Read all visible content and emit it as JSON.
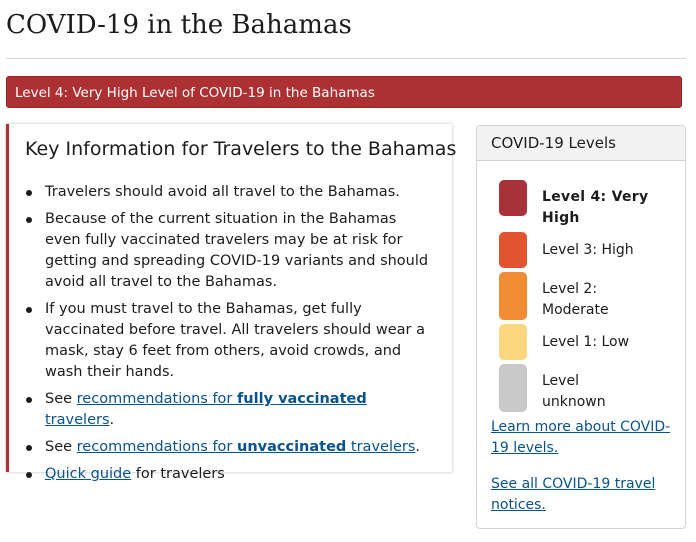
{
  "page": {
    "title": "COVID-19 in the Bahamas"
  },
  "alert": {
    "text": "Level 4: Very High Level of COVID-19 in the Bahamas",
    "color": "#ad3033"
  },
  "key_info": {
    "heading": "Key Information for Travelers to the Bahamas",
    "items": {
      "0": "Travelers should avoid all travel to the Bahamas.",
      "1": "Because of the current situation in  the Bahamas even fully vaccinated travelers may be at risk for getting and spreading COVID-19 variants and should avoid all travel to the Bahamas.",
      "2": "If you must travel to the Bahamas, get fully vaccinated before travel. All travelers should wear a mask, stay 6 feet from others, avoid crowds, and wash their hands."
    },
    "see_prefix": "See ",
    "vaccinated_link": {
      "pre": "recommendations for ",
      "bold": "fully vaccinated",
      "post": " travelers"
    },
    "unvaccinated_link": {
      "pre": "recommendations for ",
      "bold": "unvaccinated",
      "post": " travelers"
    },
    "period": ".",
    "quick_guide": {
      "link": "Quick guide",
      "suffix": " for travelers"
    }
  },
  "levels": {
    "header": "COVID-19 Levels",
    "items": [
      {
        "label": "Level 4: Very High",
        "color": "#a8323a",
        "current": true
      },
      {
        "label": "Level 3: High",
        "color": "#e05530"
      },
      {
        "label": "Level 2: Moderate",
        "color": "#ef8c34"
      },
      {
        "label": "Level 1: Low",
        "color": "#fcd77f"
      },
      {
        "label": "Level unknown",
        "color": "#c9c9c9"
      }
    ],
    "learn_more": "Learn more about COVID-19 levels.",
    "see_all": "See all COVID-19 travel notices."
  }
}
